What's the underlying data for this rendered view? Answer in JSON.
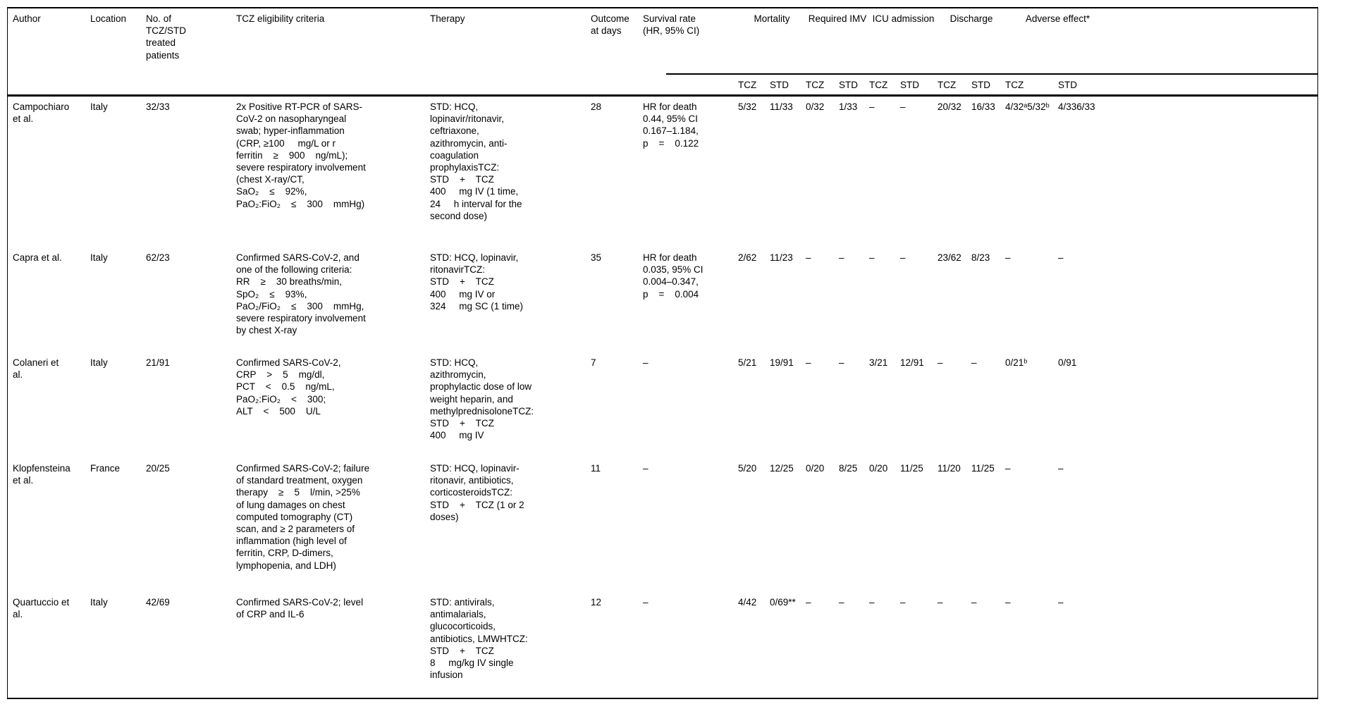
{
  "table": {
    "headers": {
      "author": "Author",
      "location": "Location",
      "patients": "No. of\nTCZ/STD\ntreated\npatients",
      "criteria": "TCZ eligibility criteria",
      "therapy": "Therapy",
      "outcome": "Outcome\nat days",
      "survival": "Survival rate\n(HR, 95% CI)"
    },
    "groups": [
      "Mortality",
      "Required IMV",
      "ICU admission",
      "Discharge",
      "Adverse effect*"
    ],
    "sub_headers": [
      "TCZ",
      "STD",
      "TCZ",
      "STD",
      "TCZ",
      "STD",
      "TCZ",
      "STD",
      "TCZ",
      "STD"
    ],
    "rows": [
      {
        "author": "Campochiaro\net al.",
        "location": "Italy",
        "patients": "32/33",
        "criteria": "2x Positive RT-PCR of SARS-\nCoV-2 on nasopharyngeal\nswab; hyper-inflammation\n(CRP, ≥100     mg/L or r\nferritin    ≥    900    ng/mL);\nsevere respiratory involvement\n(chest X-ray/CT,\nSaO₂    ≤    92%,\nPaO₂:FiO₂    ≤    300    mmHg)",
        "therapy": "STD: HCQ,\nlopinavir/ritonavir,\nceftriaxone,\nazithromycin, anti-\ncoagulation\nprophylaxisTCZ:\nSTD    +    TCZ\n400     mg IV (1 time,\n24     h interval for the\nsecond dose)",
        "outcome": "28",
        "survival": "HR for death\n0.44, 95% CI\n0.167–1.184,\np    =    0.122",
        "stats": [
          "5/32",
          "11/33",
          "0/32",
          "1/33",
          "–",
          "–",
          "20/32",
          "16/33",
          "4/32ᵃ5/32ᵇ",
          "4/336/33"
        ]
      },
      {
        "author": "Capra et al.",
        "location": "Italy",
        "patients": "62/23",
        "criteria": "Confirmed SARS-CoV-2, and\none of the following criteria:\nRR    ≥    30 breaths/min,\nSpO₂    ≤    93%,\nPaO₂/FiO₂    ≤    300    mmHg,\nsevere respiratory involvement\nby chest X-ray",
        "therapy": "STD: HCQ, lopinavir,\nritonavirTCZ:\nSTD    +    TCZ\n400     mg IV or\n324     mg SC (1 time)",
        "outcome": "35",
        "survival": "HR for death\n0.035, 95% CI\n0.004–0.347,\np    =    0.004",
        "stats": [
          "2/62",
          "11/23",
          "–",
          "–",
          "–",
          "–",
          "23/62",
          "8/23",
          "–",
          "–"
        ]
      },
      {
        "author": "Colaneri et\nal.",
        "location": "Italy",
        "patients": "21/91",
        "criteria": "Confirmed SARS-CoV-2,\nCRP    >    5    mg/dl,\nPCT    <    0.5    ng/mL,\nPaO₂:FiO₂    <    300;\nALT    <    500    U/L",
        "therapy": "STD: HCQ,\nazithromycin,\nprophylactic dose of low\nweight heparin, and\nmethylprednisoloneTCZ:\nSTD    +    TCZ\n400     mg IV",
        "outcome": "7",
        "survival": "–",
        "stats": [
          "5/21",
          "19/91",
          "–",
          "–",
          "3/21",
          "12/91",
          "–",
          "–",
          "0/21ᵇ",
          "0/91"
        ]
      },
      {
        "author": "Klopfensteina\net al.",
        "location": "France",
        "patients": "20/25",
        "criteria": "Confirmed SARS-CoV-2; failure\nof standard treatment, oxygen\ntherapy    ≥    5    l/min, >25%\nof lung damages on chest\ncomputed tomography (CT)\nscan, and ≥ 2 parameters of\ninflammation (high level of\nferritin, CRP, D-dimers,\nlymphopenia, and LDH)",
        "therapy": "STD: HCQ, lopinavir-\nritonavir, antibiotics,\ncorticosteroidsTCZ:\nSTD    +    TCZ (1 or 2\ndoses)",
        "outcome": "11",
        "survival": "–",
        "stats": [
          "5/20",
          "12/25",
          "0/20",
          "8/25",
          "0/20",
          "11/25",
          "11/20",
          "11/25",
          "–",
          "–"
        ]
      },
      {
        "author": "Quartuccio et\nal.",
        "location": "Italy",
        "patients": "42/69",
        "criteria": "Confirmed SARS-CoV-2; level\nof CRP and IL-6",
        "therapy": "STD: antivirals,\nantimalarials,\nglucocorticoids,\nantibiotics, LMWHTCZ:\nSTD    +    TCZ\n8     mg/kg IV single\ninfusion",
        "outcome": "12",
        "survival": "–",
        "stats": [
          "4/42",
          "0/69**",
          "–",
          "–",
          "–",
          "–",
          "–",
          "–",
          "–",
          "–"
        ]
      }
    ]
  }
}
